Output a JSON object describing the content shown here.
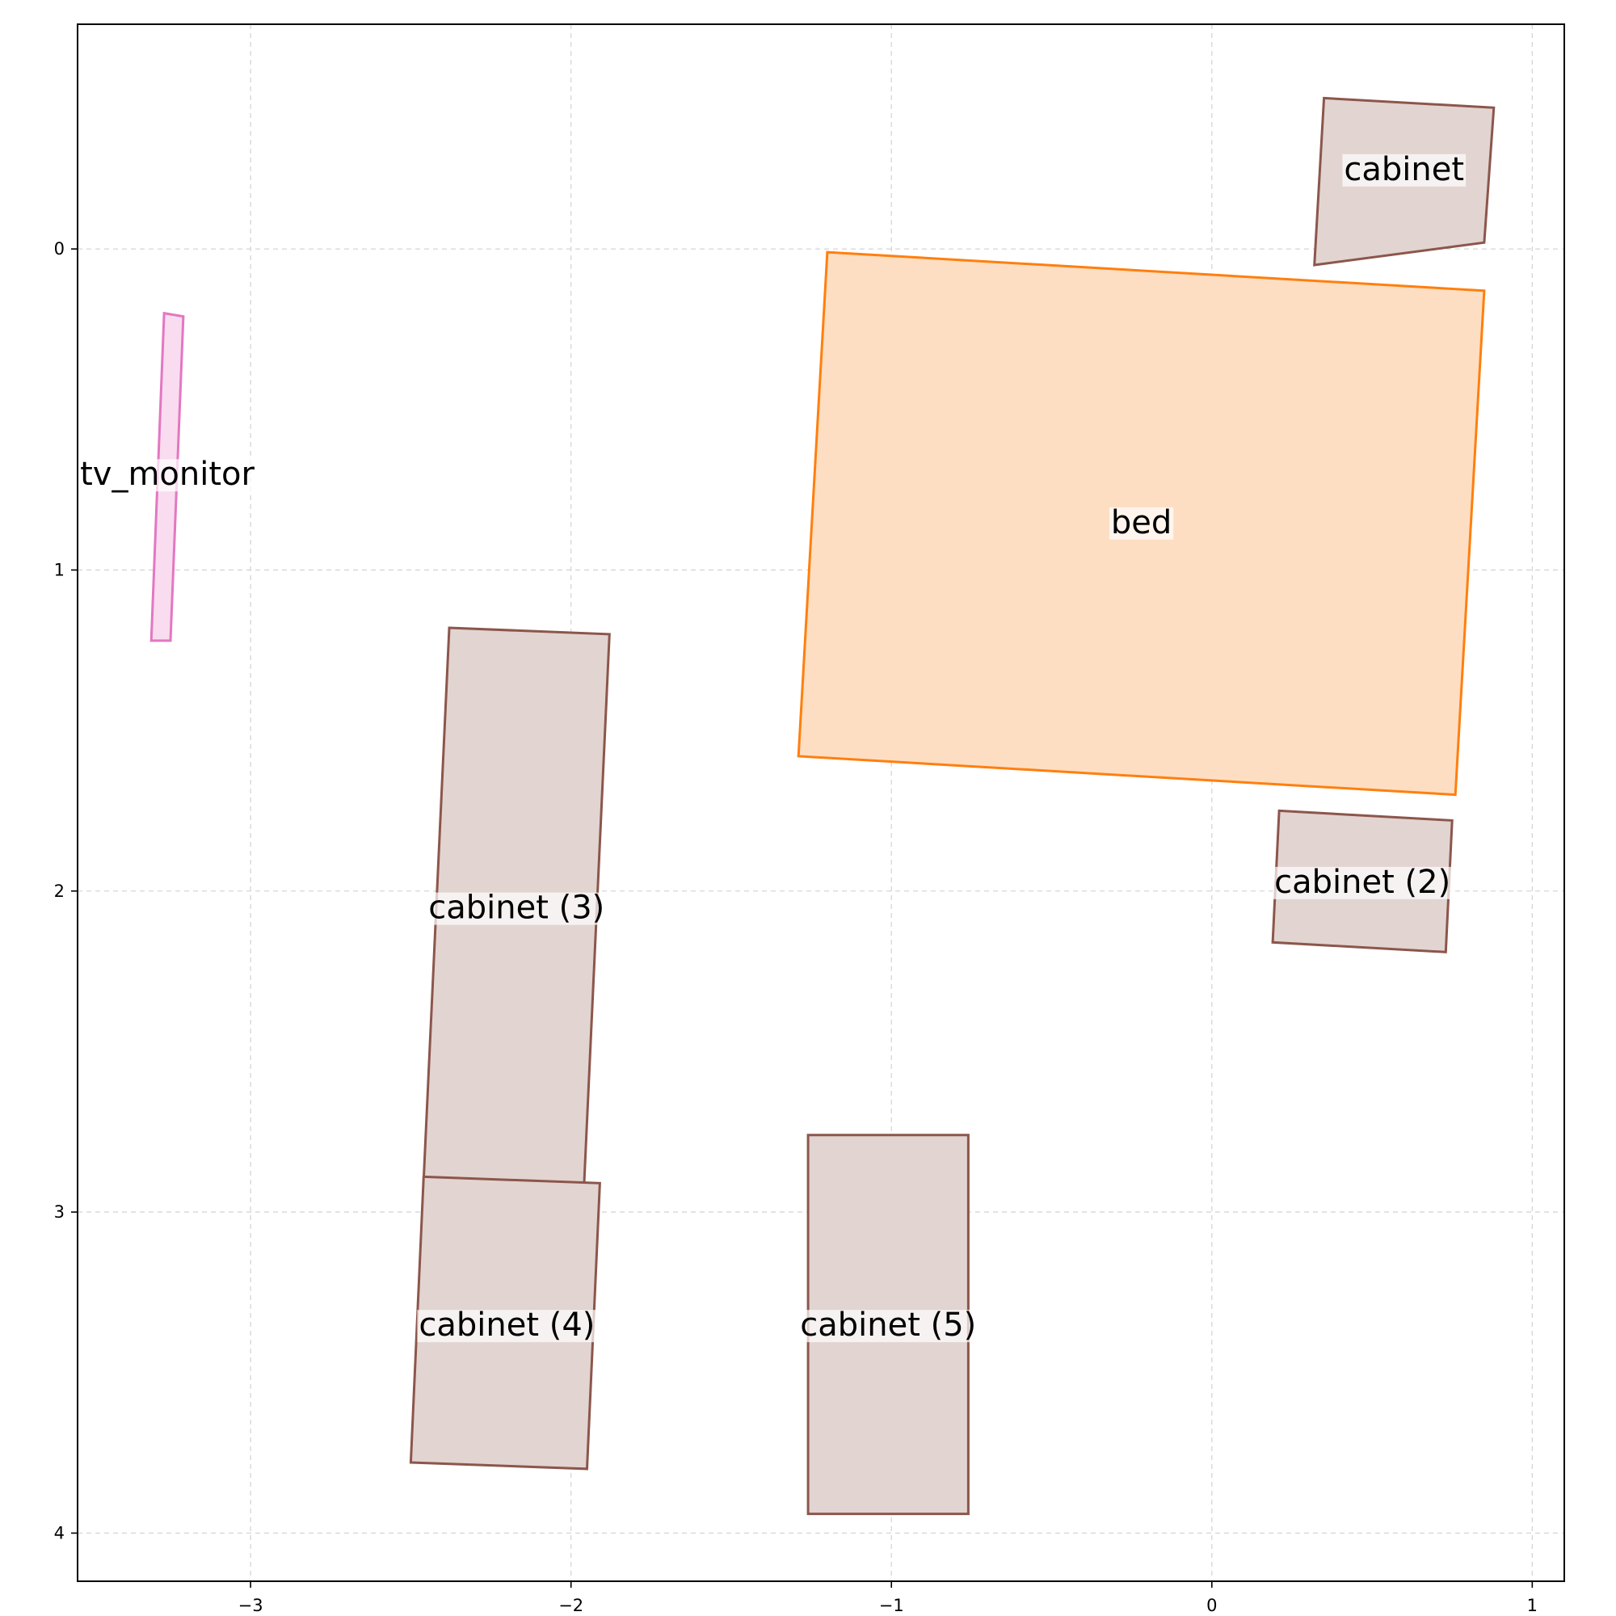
{
  "chart_data": {
    "type": "floor_plan",
    "x_ticks": [
      -3,
      -2,
      -1,
      0,
      1
    ],
    "x_tick_labels": [
      "−3",
      "−2",
      "−1",
      "0",
      "1"
    ],
    "y_ticks": [
      0,
      1,
      2,
      3,
      4
    ],
    "y_tick_labels": [
      "0",
      "1",
      "2",
      "3",
      "4"
    ],
    "xlim": [
      -3.54,
      1.1
    ],
    "ylim": [
      -0.7,
      4.15
    ],
    "y_inverted": true,
    "grid": true,
    "colors": {
      "cabinet_edge": "#8c564b",
      "cabinet_fill": "#e2d4d1",
      "bed_edge": "#ff7f0e",
      "bed_fill": "#fddec2",
      "tv_edge": "#e377c2",
      "tv_fill": "#f9dcef"
    },
    "objects": [
      {
        "label": "cabinet",
        "category": "cabinet",
        "polygon": [
          [
            0.35,
            -0.47
          ],
          [
            0.88,
            -0.44
          ],
          [
            0.85,
            -0.02
          ],
          [
            0.32,
            0.05
          ]
        ],
        "label_pos": [
          0.6,
          -0.25
        ]
      },
      {
        "label": "bed",
        "category": "bed",
        "polygon": [
          [
            -1.2,
            0.01
          ],
          [
            0.85,
            0.13
          ],
          [
            0.76,
            1.7
          ],
          [
            -1.29,
            1.58
          ]
        ],
        "label_pos": [
          -0.22,
          0.85
        ]
      },
      {
        "label": "tv_monitor",
        "category": "tv_monitor",
        "polygon": [
          [
            -3.27,
            0.2
          ],
          [
            -3.21,
            0.21
          ],
          [
            -3.25,
            1.22
          ],
          [
            -3.31,
            1.22
          ]
        ],
        "label_pos": [
          -3.26,
          0.7
        ]
      },
      {
        "label": "cabinet (2)",
        "category": "cabinet",
        "polygon": [
          [
            0.21,
            1.75
          ],
          [
            0.75,
            1.78
          ],
          [
            0.73,
            2.19
          ],
          [
            0.19,
            2.16
          ]
        ],
        "label_pos": [
          0.47,
          1.97
        ]
      },
      {
        "label": "cabinet (3)",
        "category": "cabinet",
        "polygon": [
          [
            -2.38,
            1.18
          ],
          [
            -1.88,
            1.2
          ],
          [
            -1.96,
            2.93
          ],
          [
            -2.46,
            2.9
          ]
        ],
        "label_pos": [
          -2.17,
          2.05
        ]
      },
      {
        "label": "cabinet (4)",
        "category": "cabinet",
        "polygon": [
          [
            -2.46,
            2.89
          ],
          [
            -1.91,
            2.91
          ],
          [
            -1.95,
            3.8
          ],
          [
            -2.5,
            3.78
          ]
        ],
        "label_pos": [
          -2.2,
          3.35
        ]
      },
      {
        "label": "cabinet (5)",
        "category": "cabinet",
        "polygon": [
          [
            -1.26,
            2.76
          ],
          [
            -0.76,
            2.76
          ],
          [
            -0.76,
            3.94
          ],
          [
            -1.26,
            3.94
          ]
        ],
        "label_pos": [
          -1.01,
          3.35
        ]
      }
    ]
  }
}
